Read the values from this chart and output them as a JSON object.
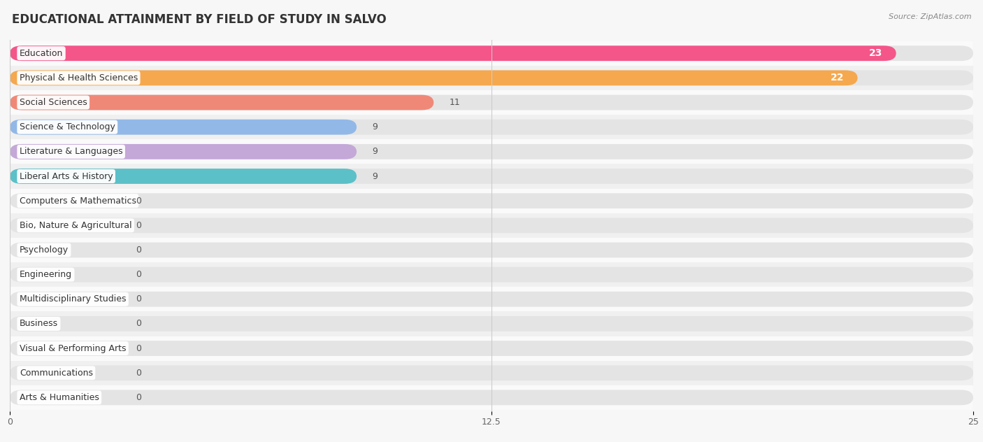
{
  "title": "EDUCATIONAL ATTAINMENT BY FIELD OF STUDY IN SALVO",
  "source": "Source: ZipAtlas.com",
  "categories": [
    "Education",
    "Physical & Health Sciences",
    "Social Sciences",
    "Science & Technology",
    "Literature & Languages",
    "Liberal Arts & History",
    "Computers & Mathematics",
    "Bio, Nature & Agricultural",
    "Psychology",
    "Engineering",
    "Multidisciplinary Studies",
    "Business",
    "Visual & Performing Arts",
    "Communications",
    "Arts & Humanities"
  ],
  "values": [
    23,
    22,
    11,
    9,
    9,
    9,
    0,
    0,
    0,
    0,
    0,
    0,
    0,
    0,
    0
  ],
  "bar_colors": [
    "#F4568A",
    "#F5A84E",
    "#F08878",
    "#92B8E8",
    "#C4A8D8",
    "#5CC0C8",
    "#A8B8E8",
    "#F5A0B8",
    "#F8C890",
    "#F0A090",
    "#A8B8E8",
    "#C8A8D8",
    "#68C8C0",
    "#A8B0E0",
    "#F5A0B8"
  ],
  "xlim": [
    0,
    25
  ],
  "xticks": [
    0,
    12.5,
    25
  ],
  "bg_color": "#f7f7f7",
  "bar_bg_color": "#e4e4e4",
  "row_bg_even": "#f0f0f0",
  "row_bg_odd": "#fafafa",
  "title_fontsize": 12,
  "label_fontsize": 9,
  "value_fontsize": 9
}
